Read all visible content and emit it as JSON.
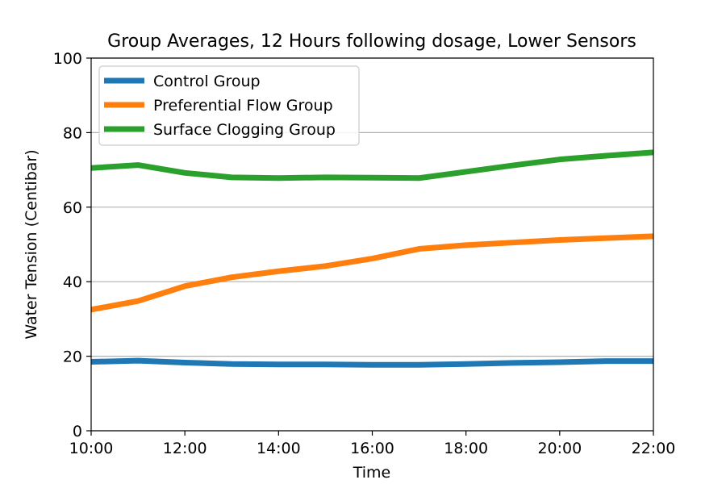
{
  "chart_data": {
    "type": "line",
    "title": "Group Averages, 12 Hours following dosage, Lower Sensors",
    "xlabel": "Time",
    "ylabel": "Water Tension (Centibar)",
    "x": [
      "10:00",
      "11:00",
      "12:00",
      "13:00",
      "14:00",
      "15:00",
      "16:00",
      "17:00",
      "18:00",
      "19:00",
      "20:00",
      "21:00",
      "22:00"
    ],
    "xticks": [
      "10:00",
      "12:00",
      "14:00",
      "16:00",
      "18:00",
      "20:00",
      "22:00"
    ],
    "ylim": [
      0,
      100
    ],
    "yticks": [
      0,
      20,
      40,
      60,
      80,
      100
    ],
    "grid": "y",
    "legend_position": "top-left",
    "series": [
      {
        "name": "Control Group",
        "color": "#1f77b4",
        "values": [
          18.5,
          18.8,
          18.3,
          17.9,
          17.8,
          17.8,
          17.7,
          17.7,
          17.9,
          18.2,
          18.4,
          18.7,
          18.7
        ]
      },
      {
        "name": "Preferential Flow Group",
        "color": "#ff7f0e",
        "values": [
          32.5,
          34.8,
          38.8,
          41.2,
          42.8,
          44.2,
          46.2,
          48.8,
          49.8,
          50.5,
          51.2,
          51.7,
          52.2
        ]
      },
      {
        "name": "Surface Clogging Group",
        "color": "#2ca02c",
        "values": [
          70.5,
          71.3,
          69.2,
          68.0,
          67.8,
          68.0,
          67.9,
          67.8,
          69.5,
          71.2,
          72.8,
          73.8,
          74.7
        ]
      }
    ]
  }
}
